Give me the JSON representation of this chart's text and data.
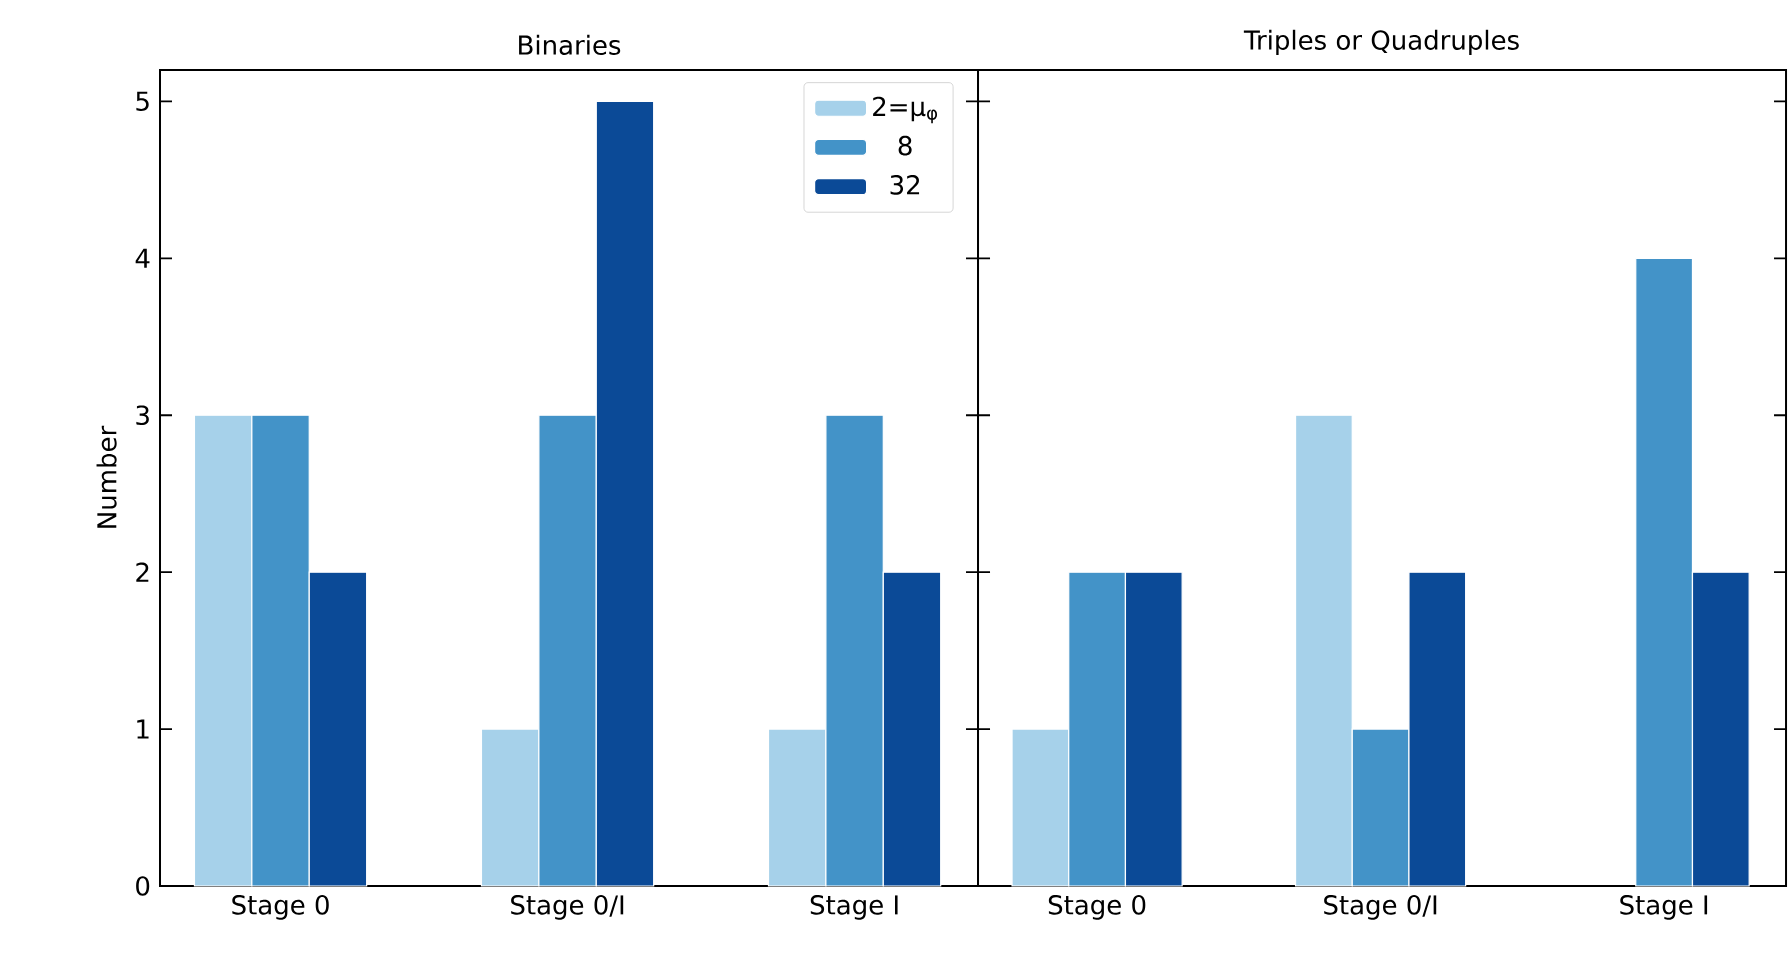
{
  "chart_data": [
    {
      "type": "bar",
      "title": "Binaries",
      "ylabel": "Number",
      "categories": [
        "Stage 0",
        "Stage 0/I",
        "Stage I"
      ],
      "series": [
        {
          "name": "2=μ$_{φ}$",
          "color": "#a6d1ea",
          "values": [
            3,
            1,
            1
          ]
        },
        {
          "name": "8",
          "color": "#4393c8",
          "values": [
            3,
            3,
            3
          ]
        },
        {
          "name": "32",
          "color": "#0b4a97",
          "values": [
            2,
            5,
            2
          ]
        }
      ],
      "ylim": [
        0,
        5.2
      ],
      "yticks": [
        0,
        1,
        2,
        3,
        4,
        5
      ],
      "legend": "top right",
      "grid": false
    },
    {
      "type": "bar",
      "title": "Triples or Quadruples",
      "categories": [
        "Stage 0",
        "Stage 0/I",
        "Stage I"
      ],
      "series": [
        {
          "color": "#a6d1ea",
          "values": [
            1,
            3,
            0
          ]
        },
        {
          "color": "#4393c8",
          "values": [
            2,
            1,
            4
          ]
        },
        {
          "color": "#0b4a97",
          "values": [
            2,
            2,
            2
          ]
        }
      ],
      "ylim": [
        0,
        5.2
      ],
      "yticks": [
        0,
        1,
        2,
        3,
        4,
        5
      ],
      "tick_labels": "x",
      "legend": false,
      "grid": false
    }
  ]
}
